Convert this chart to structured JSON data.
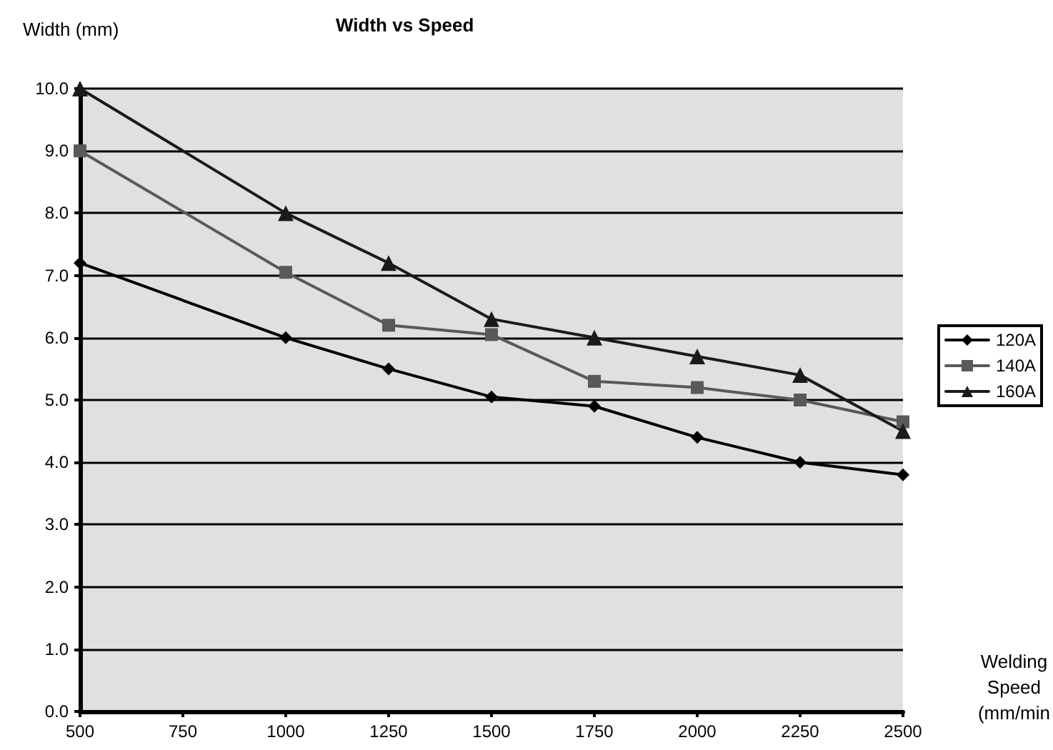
{
  "chart_data": {
    "type": "line",
    "title": "Width vs Speed",
    "xlabel": "Welding Speed (mm/min",
    "ylabel": "Width (mm)",
    "x": [
      500,
      1000,
      1250,
      1500,
      1750,
      2000,
      2250,
      2500
    ],
    "series": [
      {
        "name": "120A",
        "color": "#000000",
        "marker": "diamond",
        "values": [
          7.2,
          6.0,
          5.5,
          5.05,
          4.9,
          4.4,
          4.0,
          3.8
        ]
      },
      {
        "name": "140A",
        "color": "#595959",
        "marker": "square",
        "values": [
          9.0,
          7.05,
          6.2,
          6.05,
          5.3,
          5.2,
          5.0,
          4.65
        ]
      },
      {
        "name": "160A",
        "color": "#1a1a1a",
        "marker": "triangle",
        "values": [
          10.0,
          8.0,
          7.2,
          6.3,
          6.0,
          5.7,
          5.4,
          4.5
        ]
      }
    ],
    "xlim": [
      500,
      2500
    ],
    "xticks": [
      500,
      750,
      1000,
      1250,
      1500,
      1750,
      2000,
      2250,
      2500
    ],
    "ylim": [
      0,
      10
    ],
    "yticks": [
      {
        "value": 0,
        "label": "0.0"
      },
      {
        "value": 1,
        "label": "1.0"
      },
      {
        "value": 2,
        "label": "2.0"
      },
      {
        "value": 3,
        "label": "3.0"
      },
      {
        "value": 4,
        "label": "4.0"
      },
      {
        "value": 5,
        "label": "5.0"
      },
      {
        "value": 6,
        "label": "6.0"
      },
      {
        "value": 7,
        "label": "7.0"
      },
      {
        "value": 8,
        "label": "8.0"
      },
      {
        "value": 9,
        "label": "9.0"
      },
      {
        "value": 10,
        "label": "10.0"
      }
    ],
    "grid": "y",
    "legend": "right",
    "line_style": "solid"
  }
}
